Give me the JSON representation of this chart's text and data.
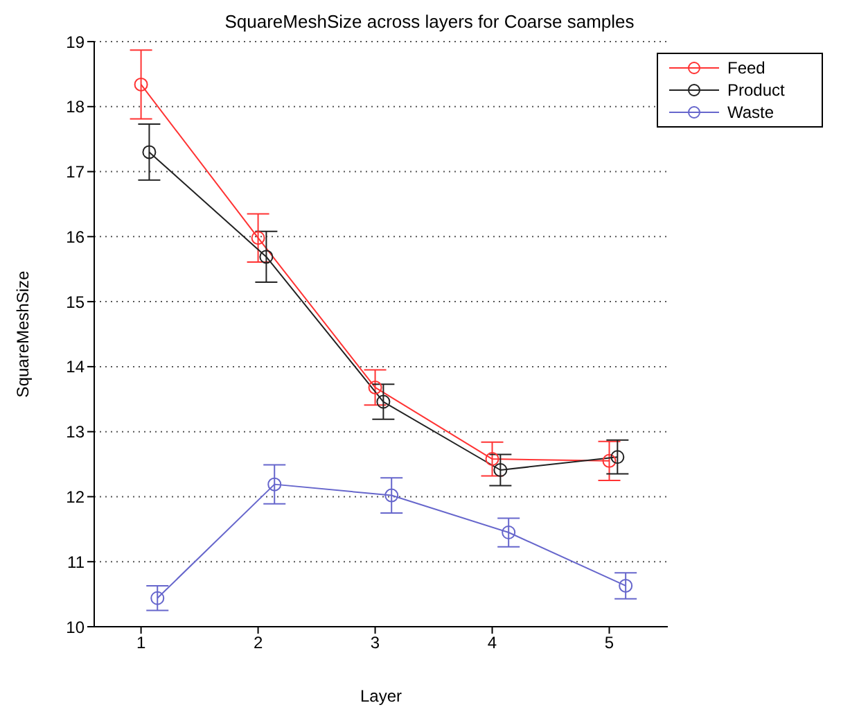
{
  "chart_data": {
    "type": "line",
    "title": "SquareMeshSize across layers for Coarse samples",
    "xlabel": "Layer",
    "ylabel": "SquareMeshSize",
    "series": [
      {
        "name": "Feed",
        "color": "#ff3333",
        "x": [
          1,
          2,
          3,
          4,
          5
        ],
        "values": [
          18.34,
          15.98,
          13.68,
          12.58,
          12.55
        ],
        "errors": [
          0.53,
          0.37,
          0.27,
          0.26,
          0.3
        ]
      },
      {
        "name": "Product",
        "color": "#222222",
        "x": [
          1.07,
          2.07,
          3.07,
          4.07,
          5.07
        ],
        "values": [
          17.3,
          15.69,
          13.46,
          12.41,
          12.61
        ],
        "errors": [
          0.43,
          0.39,
          0.27,
          0.24,
          0.26
        ]
      },
      {
        "name": "Waste",
        "color": "#6666cc",
        "x": [
          1.14,
          2.14,
          3.14,
          4.14,
          5.14
        ],
        "values": [
          10.44,
          12.19,
          12.02,
          11.45,
          10.63
        ],
        "errors": [
          0.19,
          0.3,
          0.27,
          0.22,
          0.2
        ]
      }
    ],
    "xlim": [
      0.6,
      5.5
    ],
    "xticks": [
      1,
      2,
      3,
      4,
      5
    ],
    "ylim": [
      10,
      19
    ],
    "yticks": [
      10,
      11,
      12,
      13,
      14,
      15,
      16,
      17,
      18,
      19
    ],
    "grid": "y",
    "legend": "top right",
    "marker": "circle",
    "line_style": "solid"
  }
}
